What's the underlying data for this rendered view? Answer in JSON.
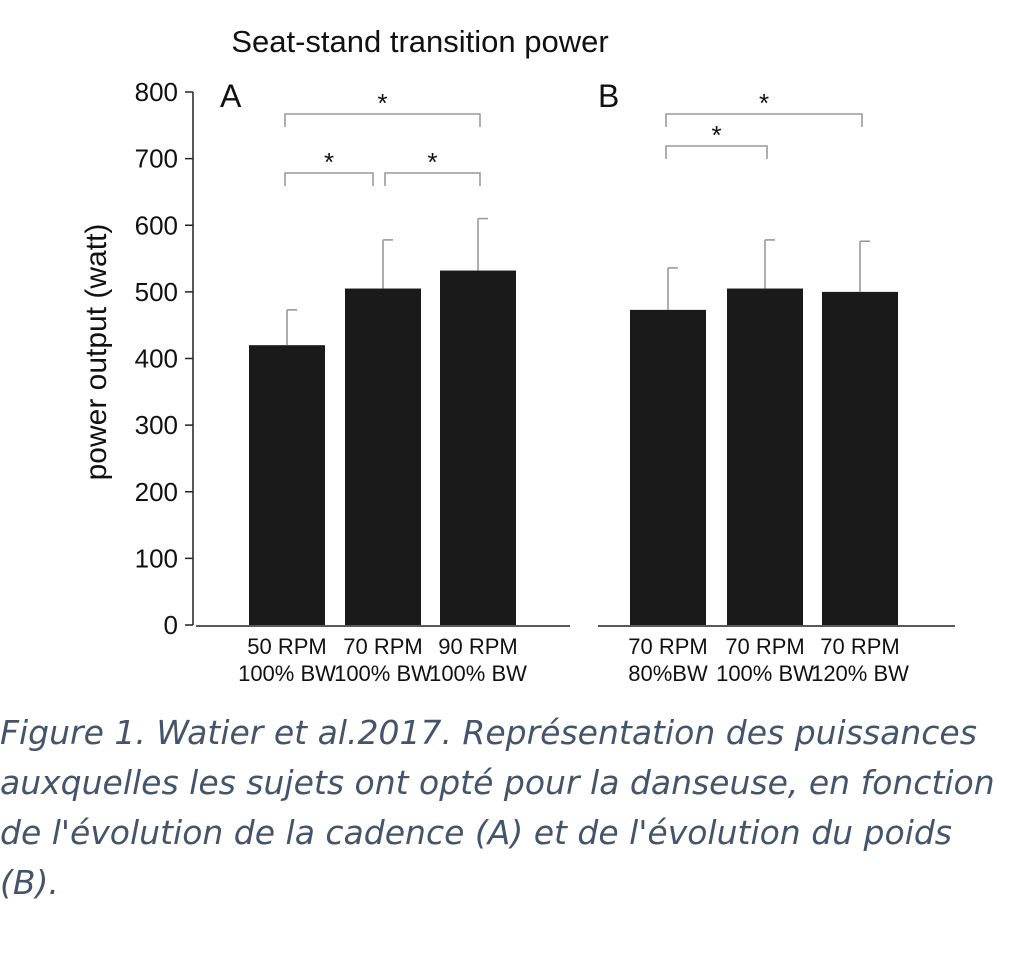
{
  "chart_data": {
    "type": "bar",
    "title": "Seat-stand transition power",
    "ylabel": "power output (watt)",
    "ylim": [
      0,
      800
    ],
    "yticks": [
      "0",
      "100",
      "200",
      "300",
      "400",
      "500",
      "600",
      "700",
      "800"
    ],
    "bar_color": "#1a1a1a",
    "panels": [
      {
        "label": "A",
        "categories": [
          [
            "50 RPM",
            "100% BW"
          ],
          [
            "70 RPM",
            "100% BW"
          ],
          [
            "90 RPM",
            "100% BW"
          ]
        ],
        "values": [
          420,
          505,
          532
        ],
        "errors": [
          53,
          73,
          78
        ],
        "significance": [
          {
            "from": 0,
            "to": 1,
            "label": "*"
          },
          {
            "from": 1,
            "to": 2,
            "label": "*"
          },
          {
            "from": 0,
            "to": 2,
            "label": "*"
          }
        ]
      },
      {
        "label": "B",
        "categories": [
          [
            "70 RPM",
            "80%BW"
          ],
          [
            "70 RPM",
            "100% BW"
          ],
          [
            "70 RPM",
            "120% BW"
          ]
        ],
        "values": [
          473,
          505,
          500
        ],
        "errors": [
          63,
          73,
          76
        ],
        "significance": [
          {
            "from": 0,
            "to": 1,
            "label": "*"
          },
          {
            "from": 0,
            "to": 2,
            "label": "*"
          }
        ]
      }
    ]
  },
  "caption": "Figure 1. Watier et al.2017. Représentation des puissances auxquelles les sujets ont opté pour la danseuse, en fonction de l'évolution de la cadence (A) et de l'évolution du poids (B)."
}
